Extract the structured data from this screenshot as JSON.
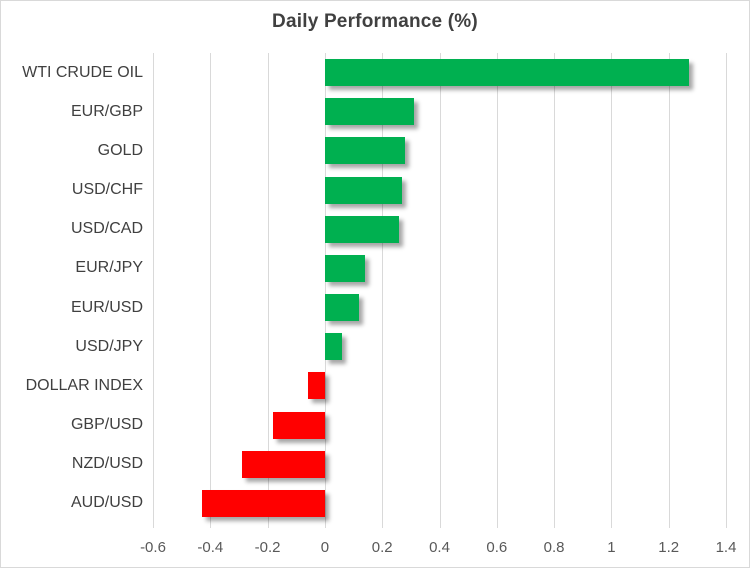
{
  "chart_data": {
    "type": "bar",
    "orientation": "horizontal",
    "title": "Daily Performance (%)",
    "categories": [
      "WTI CRUDE OIL",
      "EUR/GBP",
      "GOLD",
      "USD/CHF",
      "USD/CAD",
      "EUR/JPY",
      "EUR/USD",
      "USD/JPY",
      "DOLLAR INDEX",
      "GBP/USD",
      "NZD/USD",
      "AUD/USD"
    ],
    "values": [
      1.27,
      0.31,
      0.28,
      0.27,
      0.26,
      0.14,
      0.12,
      0.06,
      -0.06,
      -0.18,
      -0.29,
      -0.43
    ],
    "xlabel": "",
    "ylabel": "",
    "xlim": [
      -0.6,
      1.4
    ],
    "x_tick_values": [
      -0.6,
      -0.4,
      -0.2,
      0,
      0.2,
      0.4,
      0.6,
      0.8,
      1,
      1.2,
      1.4
    ],
    "x_tick_labels": [
      "-0.6",
      "-0.4",
      "-0.2",
      "0",
      "0.2",
      "0.4",
      "0.6",
      "0.8",
      "1",
      "1.2",
      "1.4"
    ],
    "grid": true,
    "legend": false,
    "colors": {
      "positive": "#00B050",
      "negative": "#FF0000",
      "gridline": "#D9D9D9",
      "title_text": "#404040",
      "category_text": "#404040",
      "tick_text": "#595959"
    }
  }
}
